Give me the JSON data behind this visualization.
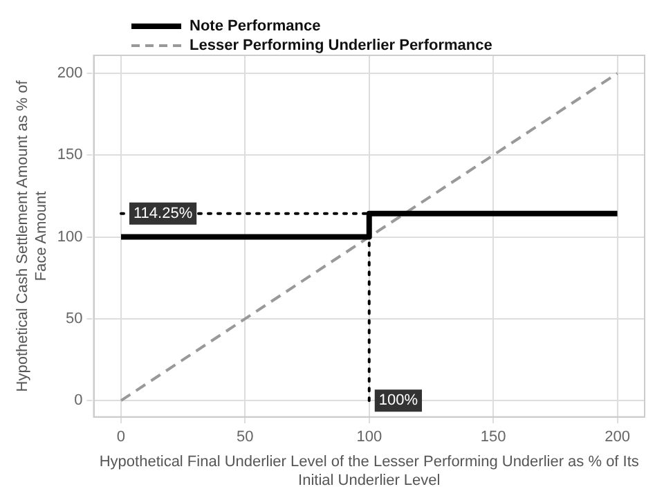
{
  "chart_data": {
    "type": "line",
    "xlabel": "Hypothetical Final Underlier Level of the Lesser Performing Underlier as % of Its Initial Underlier Level",
    "ylabel": "Hypothetical Cash Settlement Amount as % of Face Amount",
    "series": [
      {
        "name": "Note Performance",
        "color": "#000000",
        "x": [
          0,
          100,
          100,
          200
        ],
        "values": [
          100,
          100,
          114.25,
          114.25
        ],
        "line_style": "solid"
      },
      {
        "name": "Lesser Performing Underlier Performance",
        "color": "#999999",
        "x": [
          0,
          200
        ],
        "values": [
          0,
          200
        ],
        "line_style": "dashed"
      }
    ],
    "xlim": [
      -11,
      211
    ],
    "xticks": [
      0,
      50,
      100,
      150,
      200
    ],
    "ylim": [
      -10,
      211
    ],
    "yticks": [
      0,
      50,
      100,
      150,
      200
    ],
    "ref_lines": [
      {
        "axis": "y",
        "value": 114.25,
        "label": "114.25%",
        "color": "#000000",
        "line_style": "dotted"
      },
      {
        "axis": "x",
        "value": 100,
        "label": "100%",
        "color": "#000000",
        "line_style": "dotted"
      }
    ],
    "grid": true,
    "legend": "top left",
    "marker": "none"
  }
}
